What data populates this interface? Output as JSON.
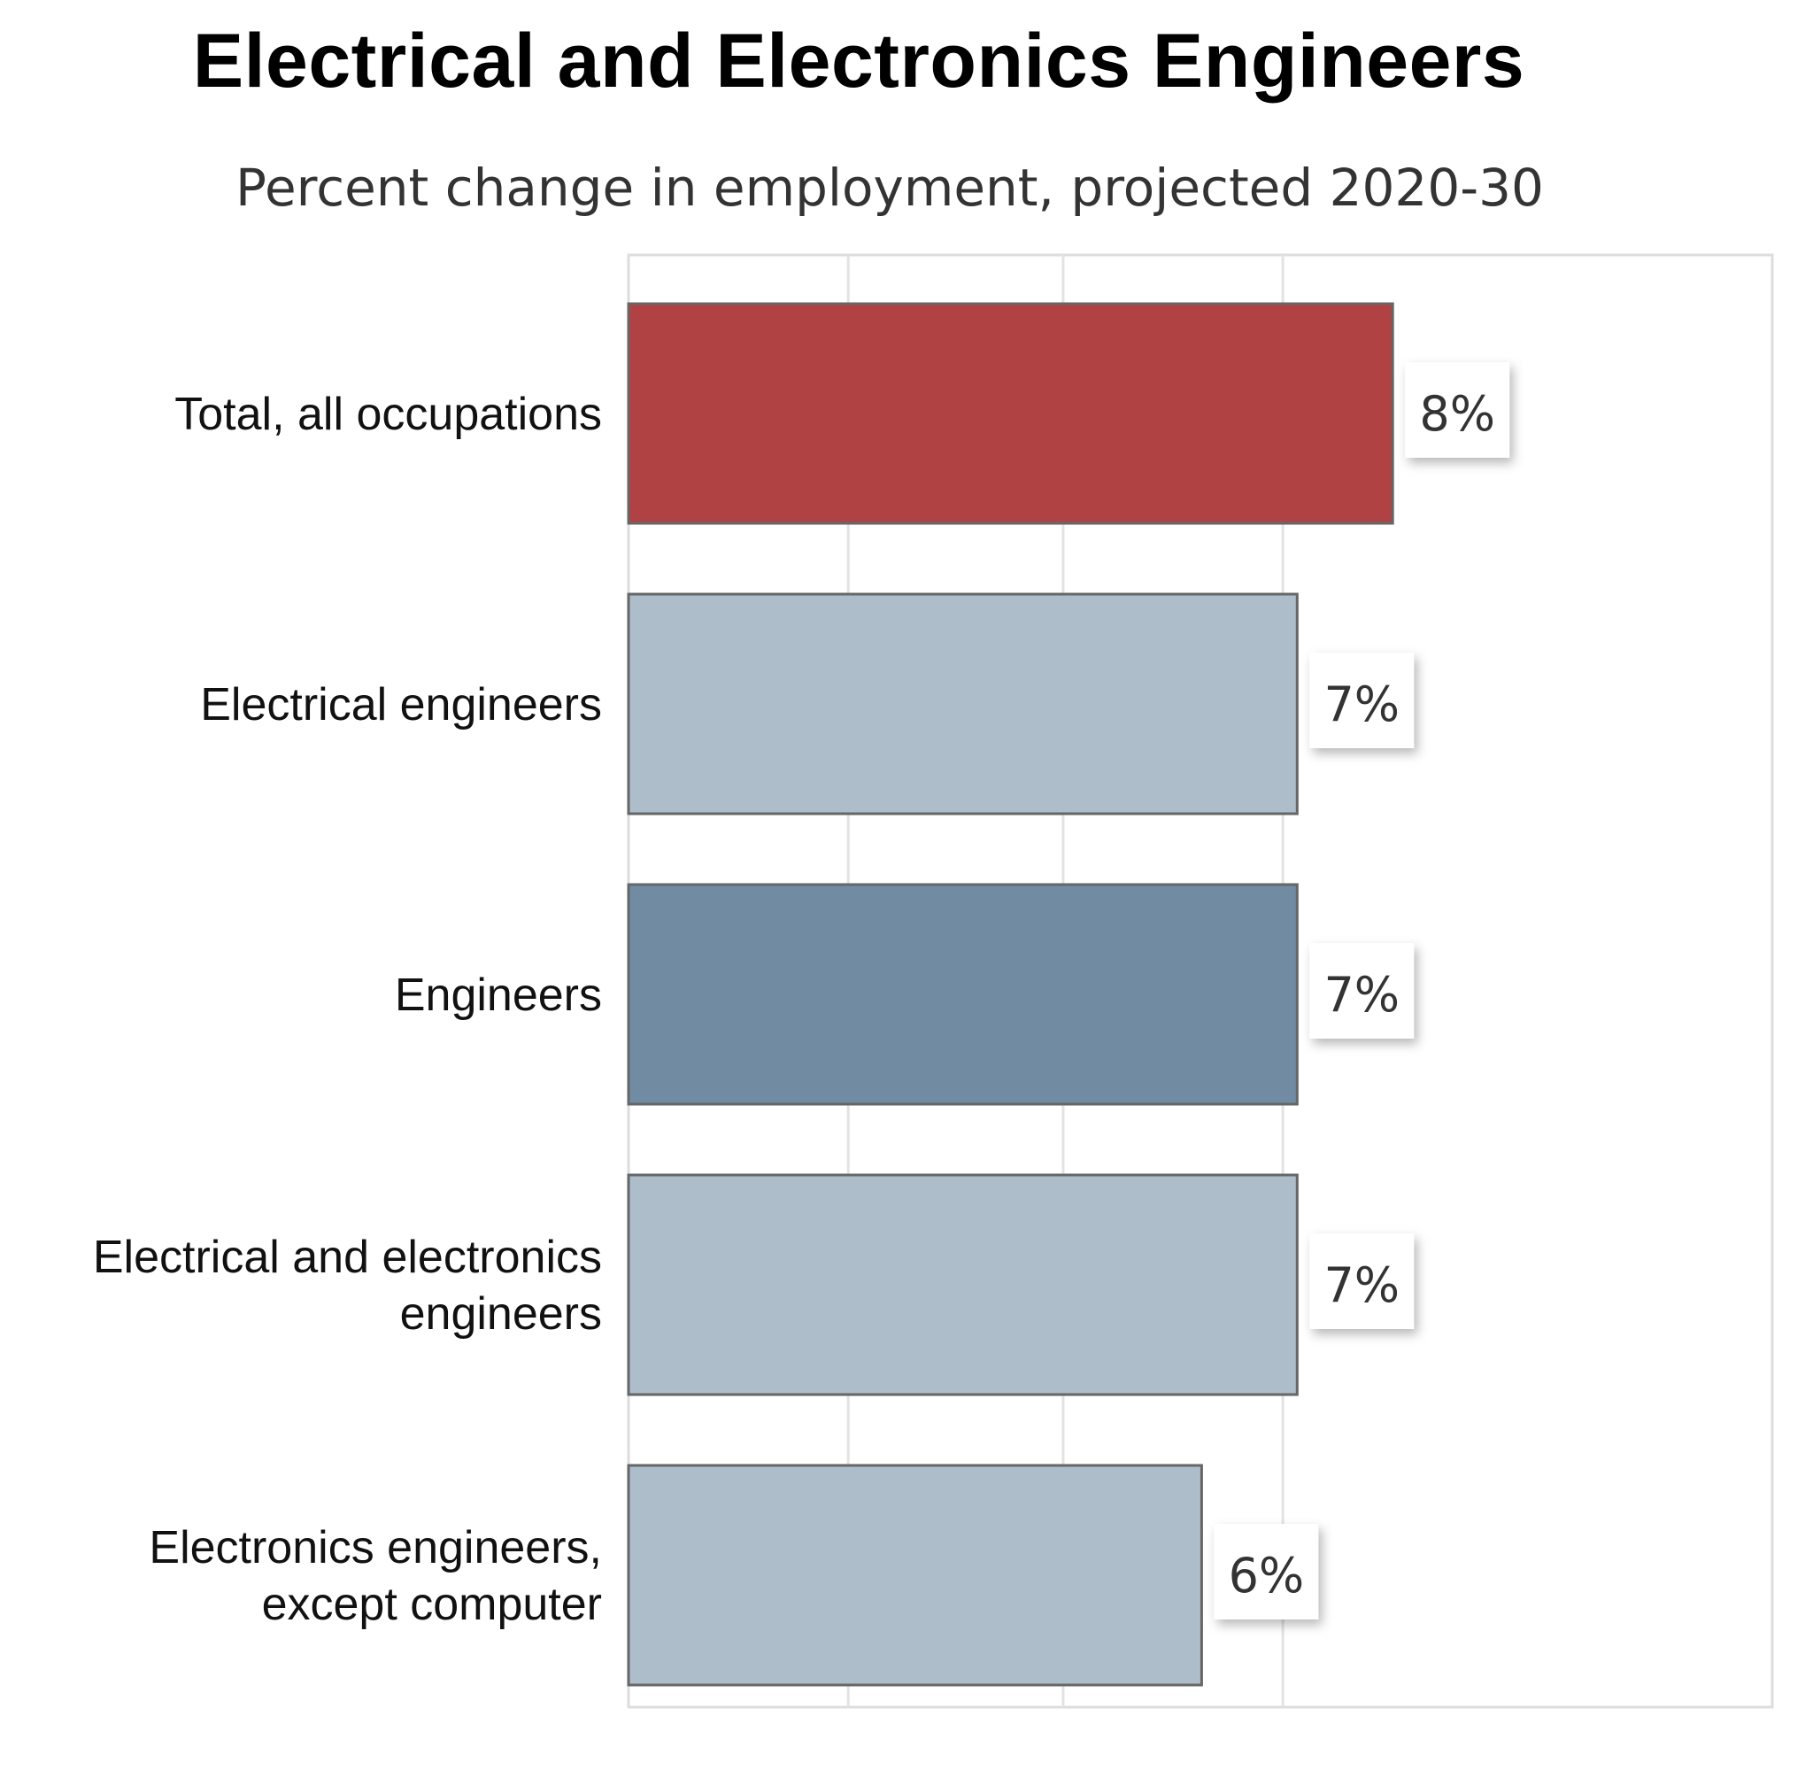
{
  "chart_data": {
    "type": "bar",
    "orientation": "horizontal",
    "title": "Electrical and Electronics Engineers",
    "subtitle": "Percent change in employment, projected 2020-30",
    "categories": [
      [
        "Total, all occupations"
      ],
      [
        "Electrical engineers"
      ],
      [
        "Engineers"
      ],
      [
        "Electrical and electronics",
        "engineers"
      ],
      [
        "Electronics engineers,",
        "except computer"
      ]
    ],
    "values": [
      8,
      7,
      7,
      7,
      6
    ],
    "value_labels": [
      "8%",
      "7%",
      "7%",
      "7%",
      "6%"
    ],
    "bar_colors": [
      "#b14244",
      "#adbdc9",
      "#718ba2",
      "#adbdc9",
      "#adbdc9"
    ],
    "xlim": [
      0,
      12
    ],
    "grid": true,
    "xlabel": "",
    "ylabel": ""
  }
}
